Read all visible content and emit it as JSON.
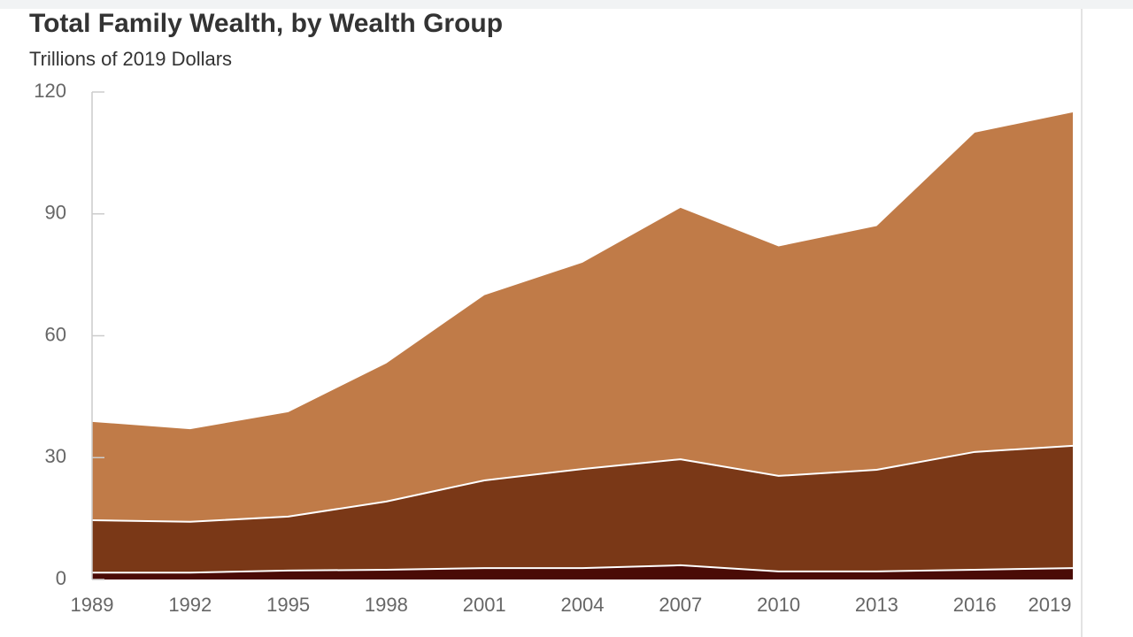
{
  "chart_data": {
    "type": "stacked-area",
    "title": "Total Family Wealth, by Wealth Group",
    "subtitle": "Trillions of 2019 Dollars",
    "categories": [
      "1989",
      "1992",
      "1995",
      "1998",
      "2001",
      "2004",
      "2007",
      "2010",
      "2013",
      "2016",
      "2019"
    ],
    "series": [
      {
        "color": "#4a0b06",
        "values": [
          1.7,
          1.7,
          2.2,
          2.4,
          2.8,
          2.8,
          3.5,
          2,
          2,
          2.4,
          2.8
        ]
      },
      {
        "color": "#7a3817",
        "values": [
          12.9,
          12.5,
          13.3,
          16.8,
          21.6,
          24.4,
          26.1,
          23.5,
          25,
          29,
          30.1
        ]
      },
      {
        "color": "#c07b48",
        "values": [
          24.2,
          22.8,
          25.7,
          34,
          45.6,
          50.8,
          61.9,
          56.5,
          60,
          78.6,
          82.1
        ]
      }
    ],
    "ylim": [
      0,
      120
    ],
    "yticks": [
      0,
      30,
      60,
      90,
      120
    ],
    "grid": false
  }
}
